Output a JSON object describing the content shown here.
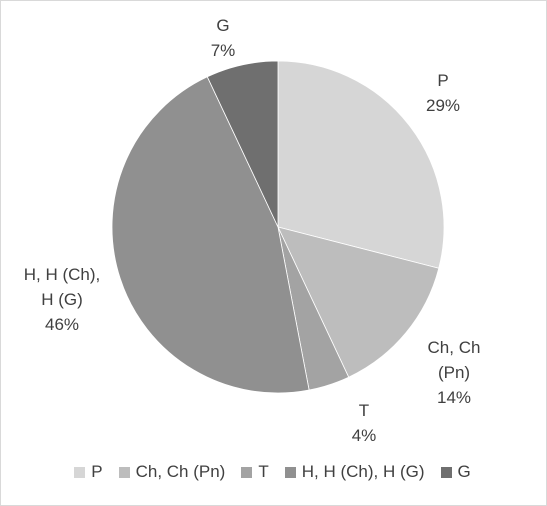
{
  "chart_data": {
    "type": "pie",
    "title": "",
    "series": [
      {
        "name": "P",
        "value": 29,
        "label_lines": [
          "P",
          "29%"
        ],
        "color": "#d6d6d6"
      },
      {
        "name": "Ch, Ch (Pn)",
        "value": 14,
        "label_lines": [
          "Ch, Ch",
          "(Pn)",
          "14%"
        ],
        "color": "#bdbdbd"
      },
      {
        "name": "T",
        "value": 4,
        "label_lines": [
          "T",
          "4%"
        ],
        "color": "#a3a3a3"
      },
      {
        "name": "H, H (Ch), H (G)",
        "value": 46,
        "label_lines": [
          "H, H (Ch),",
          "H (G)",
          "46%"
        ],
        "color": "#909090"
      },
      {
        "name": "G",
        "value": 7,
        "label_lines": [
          "G",
          "7%"
        ],
        "color": "#6f6f6f"
      }
    ],
    "legend_position": "bottom"
  }
}
